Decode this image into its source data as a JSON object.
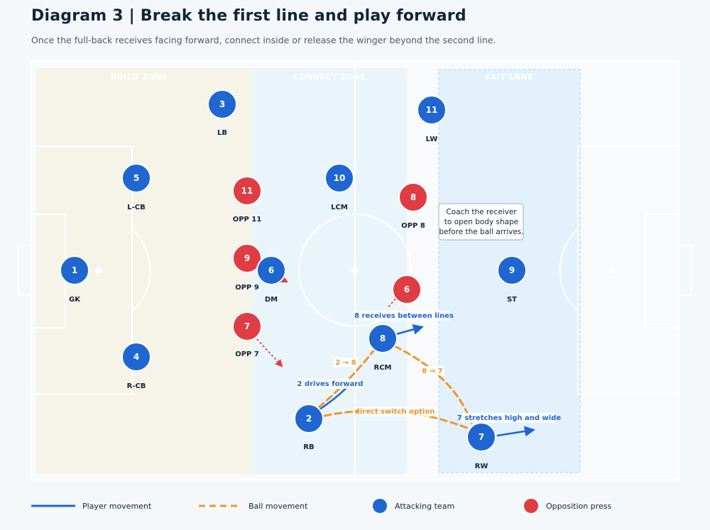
{
  "header": {
    "title": "Diagram 3 | Break the first line and play forward",
    "subtitle": "Once the full-back receives facing forward, connect inside or release the winger beyond the second line."
  },
  "zones": {
    "build": "BUILD ZONE",
    "connect": "CONNECT ZONE",
    "exit": "EXIT LANE"
  },
  "colors": {
    "attack": "#1f66d1",
    "opposition": "#e03c44",
    "ball": "#f0962b"
  },
  "attackers": [
    {
      "id": "gk",
      "num": "1",
      "label": "GK"
    },
    {
      "id": "lcb",
      "num": "5",
      "label": "L-CB"
    },
    {
      "id": "rcb",
      "num": "4",
      "label": "R-CB"
    },
    {
      "id": "lb",
      "num": "3",
      "label": "LB"
    },
    {
      "id": "dm",
      "num": "6",
      "label": "DM"
    },
    {
      "id": "lcm",
      "num": "10",
      "label": "LCM"
    },
    {
      "id": "rcm",
      "num": "8",
      "label": "RCM"
    },
    {
      "id": "lw",
      "num": "11",
      "label": "LW"
    },
    {
      "id": "st",
      "num": "9",
      "label": "ST"
    },
    {
      "id": "rw",
      "num": "7",
      "label": "RW"
    },
    {
      "id": "rb",
      "num": "2",
      "label": "RB"
    }
  ],
  "opponents": [
    {
      "id": "opp11",
      "num": "11",
      "label": "OPP 11"
    },
    {
      "id": "opp9",
      "num": "9",
      "label": "OPP 9"
    },
    {
      "id": "opp7",
      "num": "7",
      "label": "OPP 7"
    },
    {
      "id": "opp8",
      "num": "8",
      "label": "OPP 8"
    },
    {
      "id": "opp6",
      "num": "6",
      "label": ""
    }
  ],
  "movement_labels": {
    "rb_drive": "2 drives forward",
    "rcm_receive": "8 receives between lines",
    "rw_stretch": "7 stretches high and wide",
    "pass_2_8": "2 → 8",
    "pass_8_7": "8 → 7",
    "switch": "direct switch option"
  },
  "coach_note": [
    "Coach the receiver",
    "to open body shape",
    "before the ball arrives."
  ],
  "legend": {
    "player_movement": "Player movement",
    "ball_movement": "Ball movement",
    "attacking_team": "Attacking team",
    "opposition_press": "Opposition press"
  }
}
